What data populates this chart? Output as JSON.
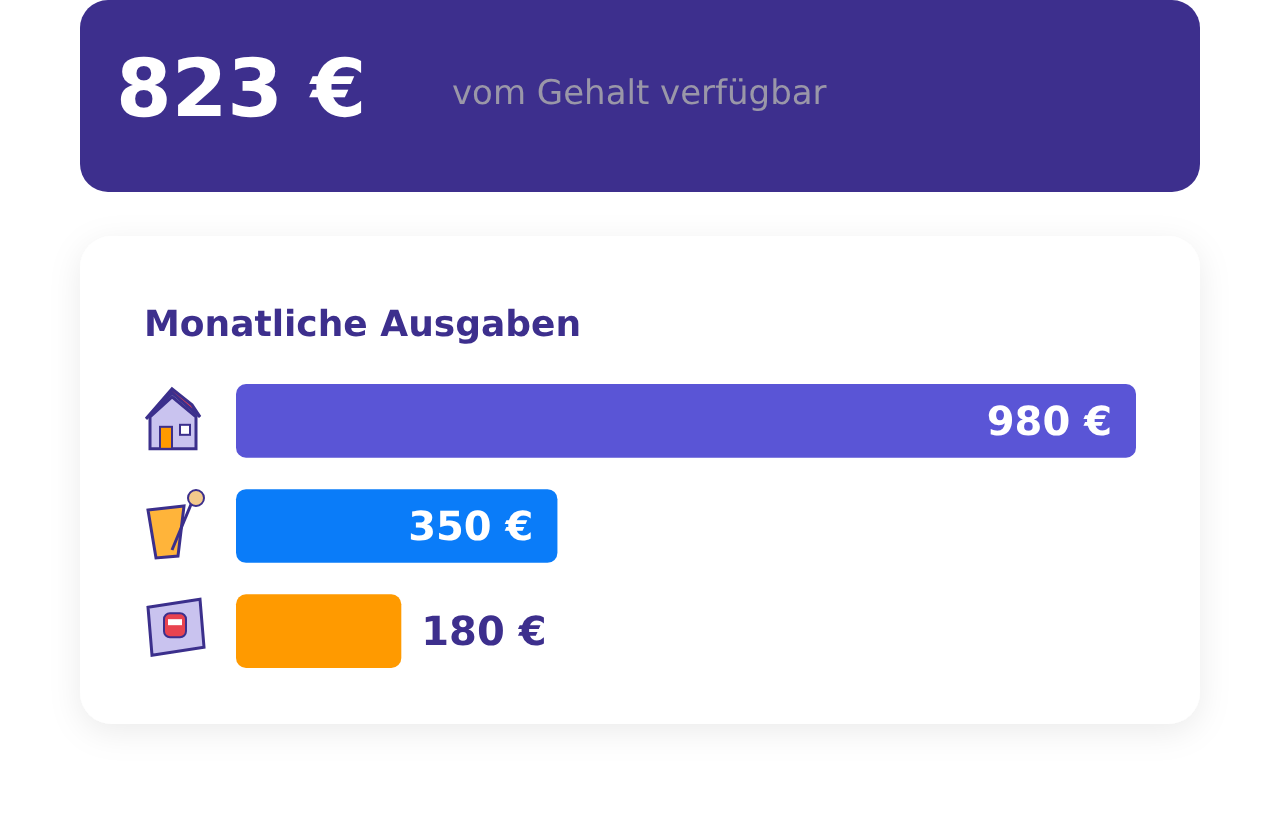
{
  "chart_data": [
    {
      "type": "other",
      "title": "823 €",
      "subtitle": "vom Gehalt verfügbar"
    },
    {
      "type": "bar",
      "orientation": "horizontal",
      "title": "Monatliche Ausgaben",
      "categories": [
        null,
        null,
        null
      ],
      "values": [
        980,
        350,
        180
      ],
      "colors": [
        "#5a55d6",
        "#0a7cf9",
        "#ff9a00"
      ],
      "value_labels": [
        "980 €",
        "350 €",
        "180 €"
      ]
    }
  ]
}
